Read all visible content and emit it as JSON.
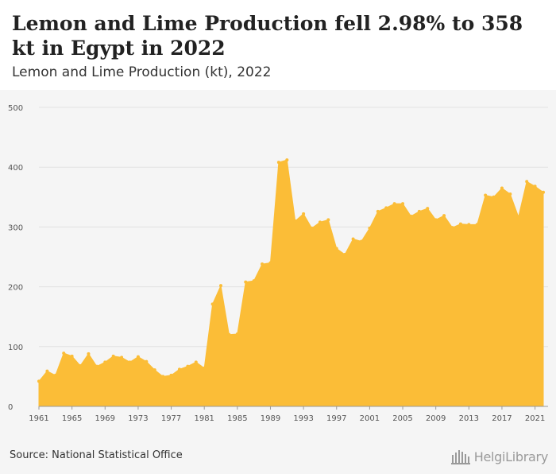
{
  "header": {
    "title": "Lemon and Lime Production fell 2.98% to 358 kt in Egypt in 2022",
    "subtitle": "Lemon and Lime Production (kt), 2022"
  },
  "footer": {
    "source": "Source: National Statistical Office",
    "brand_name": "HelgiLibrary",
    "brand_icon": "library-building-icon"
  },
  "colors": {
    "area_fill": "#fbbd37",
    "grid": "#e2e2e2",
    "background": "#f5f5f5"
  },
  "chart_data": {
    "type": "area",
    "title": "Lemon and Lime Production fell 2.98% to 358 kt in Egypt in 2022",
    "subtitle": "Lemon and Lime Production (kt), 2022",
    "xlabel": "",
    "ylabel": "",
    "xlim": [
      1961,
      2022
    ],
    "ylim": [
      0,
      500
    ],
    "yticks": [
      0,
      100,
      200,
      300,
      400,
      500
    ],
    "xticks": [
      1961,
      1965,
      1969,
      1973,
      1977,
      1981,
      1985,
      1989,
      1993,
      1997,
      2001,
      2005,
      2009,
      2013,
      2017,
      2021
    ],
    "grid": true,
    "legend": "none",
    "x": [
      1961,
      1962,
      1963,
      1964,
      1965,
      1966,
      1967,
      1968,
      1969,
      1970,
      1971,
      1972,
      1973,
      1974,
      1975,
      1976,
      1977,
      1978,
      1979,
      1980,
      1981,
      1982,
      1983,
      1984,
      1985,
      1986,
      1987,
      1988,
      1989,
      1990,
      1991,
      1992,
      1993,
      1994,
      1995,
      1996,
      1997,
      1998,
      1999,
      2000,
      2001,
      2002,
      2003,
      2004,
      2005,
      2006,
      2007,
      2008,
      2009,
      2010,
      2011,
      2012,
      2013,
      2014,
      2015,
      2016,
      2017,
      2018,
      2019,
      2020,
      2021,
      2022
    ],
    "values": [
      42,
      59,
      52,
      89,
      84,
      68,
      88,
      67,
      74,
      84,
      82,
      74,
      83,
      75,
      61,
      50,
      52,
      62,
      67,
      74,
      64,
      171,
      202,
      120,
      121,
      208,
      210,
      238,
      240,
      408,
      412,
      310,
      322,
      298,
      308,
      312,
      264,
      254,
      280,
      276,
      298,
      326,
      332,
      339,
      339,
      318,
      326,
      331,
      312,
      319,
      299,
      305,
      304,
      304,
      353,
      350,
      365,
      355,
      317,
      376,
      368,
      358
    ]
  }
}
